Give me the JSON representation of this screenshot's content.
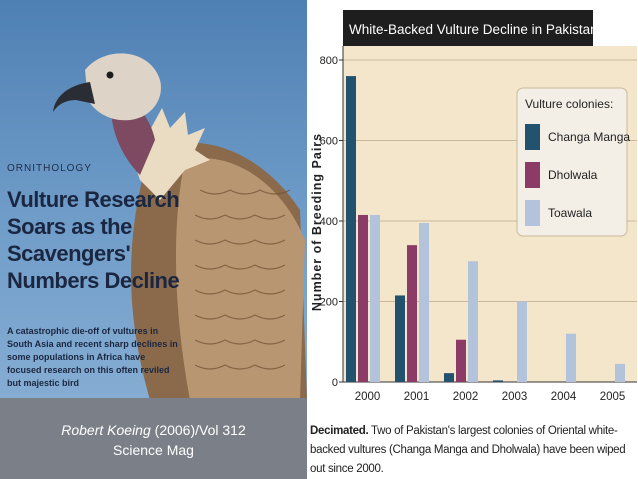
{
  "left": {
    "kicker": "ORNITHOLOGY",
    "headline_lines": [
      "Vulture Research",
      "Soars as the",
      "Scavengers'",
      "Numbers Decline"
    ],
    "deck": "A catastrophic die-off of vultures in South Asia and recent sharp declines in some populations in Africa have focused research on this often reviled but majestic bird",
    "caption": {
      "author": "Robert Koeing",
      "citation": " (2006)/Vol 312",
      "source": "Science Mag"
    }
  },
  "chart_data": {
    "type": "bar",
    "title": "White-Backed Vulture Decline in Pakistan",
    "ylabel": "Number of Breeding Pairs",
    "xlabel": "",
    "categories": [
      "2000",
      "2001",
      "2002",
      "2003",
      "2004",
      "2005"
    ],
    "ylim": [
      0,
      800
    ],
    "yticks": [
      0,
      200,
      400,
      600,
      800
    ],
    "grid": true,
    "legend_title": "Vulture colonies:",
    "legend_position": "top-right",
    "series": [
      {
        "name": "Changa Manga",
        "color": "#22526e",
        "values": [
          760,
          215,
          22,
          4,
          0,
          0
        ]
      },
      {
        "name": "Dholwala",
        "color": "#8c3a66",
        "values": [
          415,
          340,
          105,
          0,
          0,
          0
        ]
      },
      {
        "name": "Toawala",
        "color": "#b4c3dc",
        "values": [
          415,
          395,
          300,
          200,
          120,
          45
        ]
      }
    ]
  },
  "note": {
    "lead": "Decimated.",
    "text": " Two of Pakistan's largest colonies of Oriental white-backed vultures (Changa Manga and Dholwala) have been wiped out since 2000."
  }
}
